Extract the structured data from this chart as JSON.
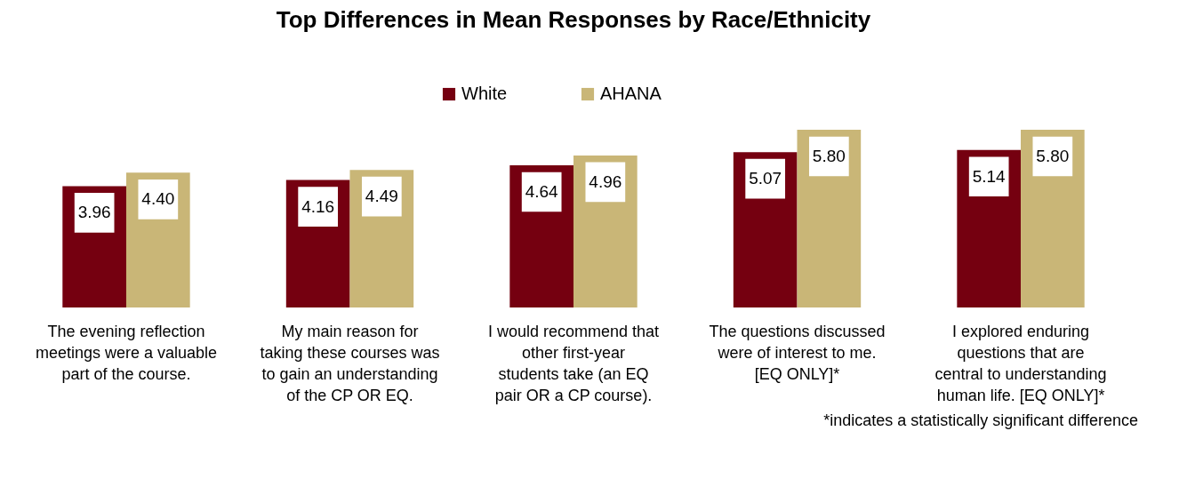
{
  "chart_data": {
    "type": "bar",
    "title": "Top Differences in Mean Responses by Race/Ethnicity",
    "categories": [
      "The evening reflection meetings were a valuable part of the course.",
      "My main reason for taking these courses was to gain an understanding of the CP OR EQ.",
      "I would recommend that other first-year students take (an EQ pair OR a CP course).",
      "The questions discussed were of interest to me. [EQ ONLY]*",
      "I explored enduring questions that are central to understanding human life. [EQ ONLY]*"
    ],
    "series": [
      {
        "name": "White",
        "color": "#750010",
        "values": [
          3.96,
          4.16,
          4.64,
          5.07,
          5.14
        ],
        "value_labels": [
          "3.96",
          "4.16",
          "4.64",
          "5.07",
          "5.14"
        ]
      },
      {
        "name": "AHANA",
        "color": "#c9b677",
        "values": [
          4.4,
          4.49,
          4.96,
          5.8,
          5.8
        ],
        "value_labels": [
          "4.40",
          "4.49",
          "4.96",
          "5.80",
          "5.80"
        ]
      }
    ],
    "legend": "top",
    "annotations": [
      "*indicates a statistically significant difference"
    ]
  }
}
